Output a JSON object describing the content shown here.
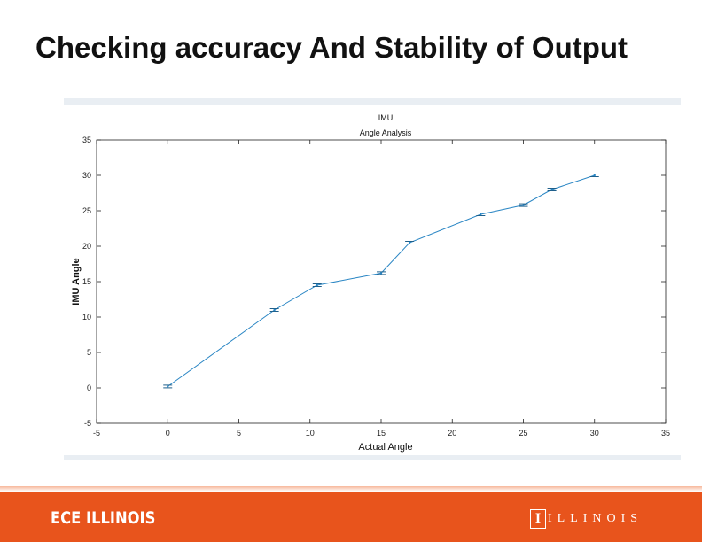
{
  "slide": {
    "title": "Checking accuracy And Stability of Output"
  },
  "footer": {
    "ece_logo": "ECE ILLINOIS",
    "block_i": "I",
    "illinois_word": "ILLINOIS",
    "bar_color": "#e8541c"
  },
  "chart_data": {
    "type": "line",
    "title": "IMU",
    "subtitle": "Angle Analysis",
    "xlabel": "Actual Angle",
    "ylabel": "IMU Angle",
    "xlim": [
      -5,
      35
    ],
    "ylim": [
      -5,
      35
    ],
    "xticks": [
      -5,
      0,
      5,
      10,
      15,
      20,
      25,
      30,
      35
    ],
    "yticks": [
      -5,
      0,
      5,
      10,
      15,
      20,
      25,
      30,
      35
    ],
    "grid": false,
    "error_bars": true,
    "line_color": "#2a86c4",
    "series": [
      {
        "x": [
          0,
          7.5,
          10.5,
          15,
          17,
          22,
          25,
          27,
          30
        ],
        "y": [
          0.2,
          11,
          14.5,
          16.2,
          20.5,
          24.5,
          25.8,
          28,
          30
        ]
      }
    ]
  }
}
